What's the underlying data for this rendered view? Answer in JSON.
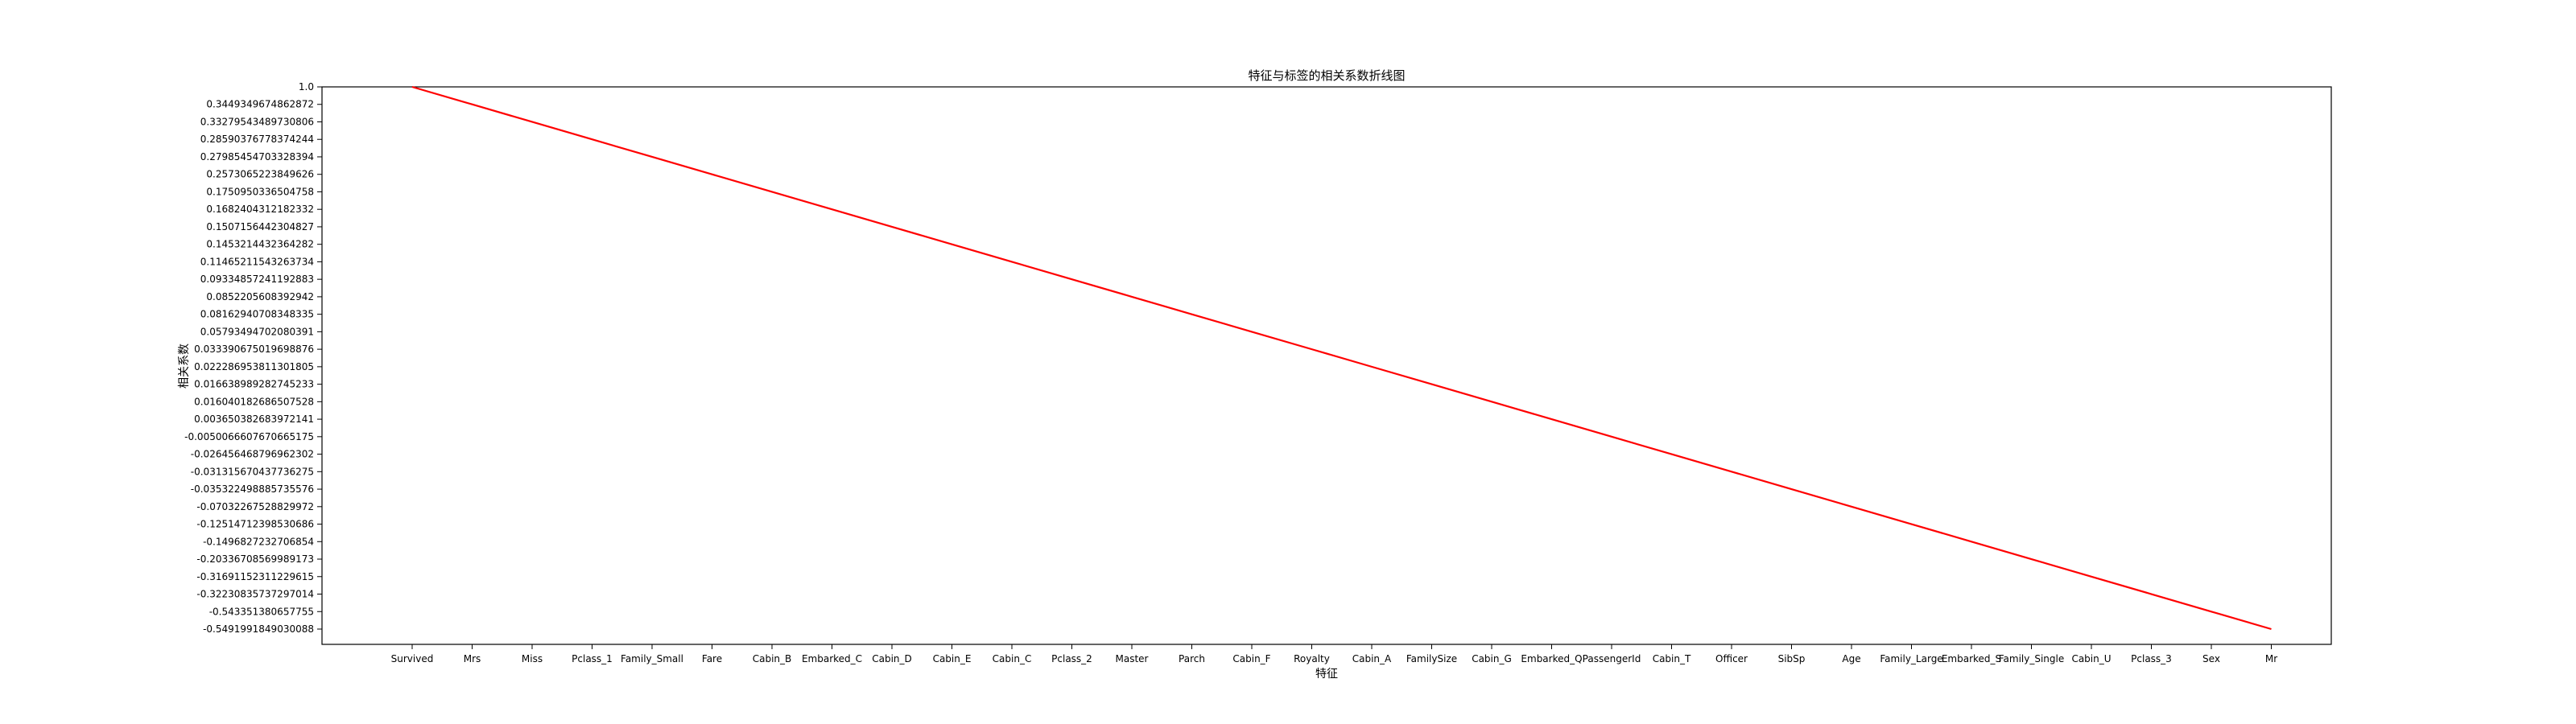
{
  "chart_data": {
    "type": "line",
    "title": "特征与标签的相关系数折线图",
    "xlabel": "特征",
    "ylabel": "相关系数",
    "grid": false,
    "categories": [
      "Survived",
      "Mrs",
      "Miss",
      "Pclass_1",
      "Family_Small",
      "Fare",
      "Cabin_B",
      "Embarked_C",
      "Cabin_D",
      "Cabin_E",
      "Cabin_C",
      "Pclass_2",
      "Master",
      "Parch",
      "Cabin_F",
      "Royalty",
      "Cabin_A",
      "FamilySize",
      "Cabin_G",
      "Embarked_Q",
      "PassengerId",
      "Cabin_T",
      "Officer",
      "SibSp",
      "Age",
      "Family_Large",
      "Embarked_S",
      "Family_Single",
      "Cabin_U",
      "Pclass_3",
      "Sex",
      "Mr"
    ],
    "y_tick_labels": [
      "1.0",
      "0.3449349674862872",
      "0.33279543489730806",
      "0.28590376778374244",
      "0.27985454703328394",
      "0.2573065223849626",
      "0.1750950336504758",
      "0.1682404312182332",
      "0.1507156442304827",
      "0.1453214432364282",
      "0.11465211543263734",
      "0.09334857241192883",
      "0.0852205608392942",
      "0.08162940708348335",
      "0.05793494702080391",
      "0.033390675019698876",
      "0.022286953811301805",
      "0.016638989282745233",
      "0.016040182686507528",
      "0.003650382683972141",
      "-0.0050066607670665175",
      "-0.026456468796962302",
      "-0.031315670437736275",
      "-0.035322498885735576",
      "-0.07032267528829972",
      "-0.12514712398530686",
      "-0.1496827232706854",
      "-0.20336708569989173",
      "-0.31691152311229615",
      "-0.32230835737297014",
      "-0.543351380657755",
      "-0.5491991849030088"
    ],
    "series": [
      {
        "name": "相关系数",
        "color": "#ff0000",
        "values": [
          "1.0",
          "0.3449349674862872",
          "0.33279543489730806",
          "0.28590376778374244",
          "0.27985454703328394",
          "0.2573065223849626",
          "0.1750950336504758",
          "0.1682404312182332",
          "0.1507156442304827",
          "0.1453214432364282",
          "0.11465211543263734",
          "0.09334857241192883",
          "0.0852205608392942",
          "0.08162940708348335",
          "0.05793494702080391",
          "0.033390675019698876",
          "0.022286953811301805",
          "0.016638989282745233",
          "0.016040182686507528",
          "0.003650382683972141",
          "-0.0050066607670665175",
          "-0.026456468796962302",
          "-0.031315670437736275",
          "-0.035322498885735576",
          "-0.07032267528829972",
          "-0.12514712398530686",
          "-0.1496827232706854",
          "-0.20336708569989173",
          "-0.31691152311229615",
          "-0.32230835737297014",
          "-0.543351380657755",
          "-0.5491991849030088"
        ]
      }
    ]
  }
}
